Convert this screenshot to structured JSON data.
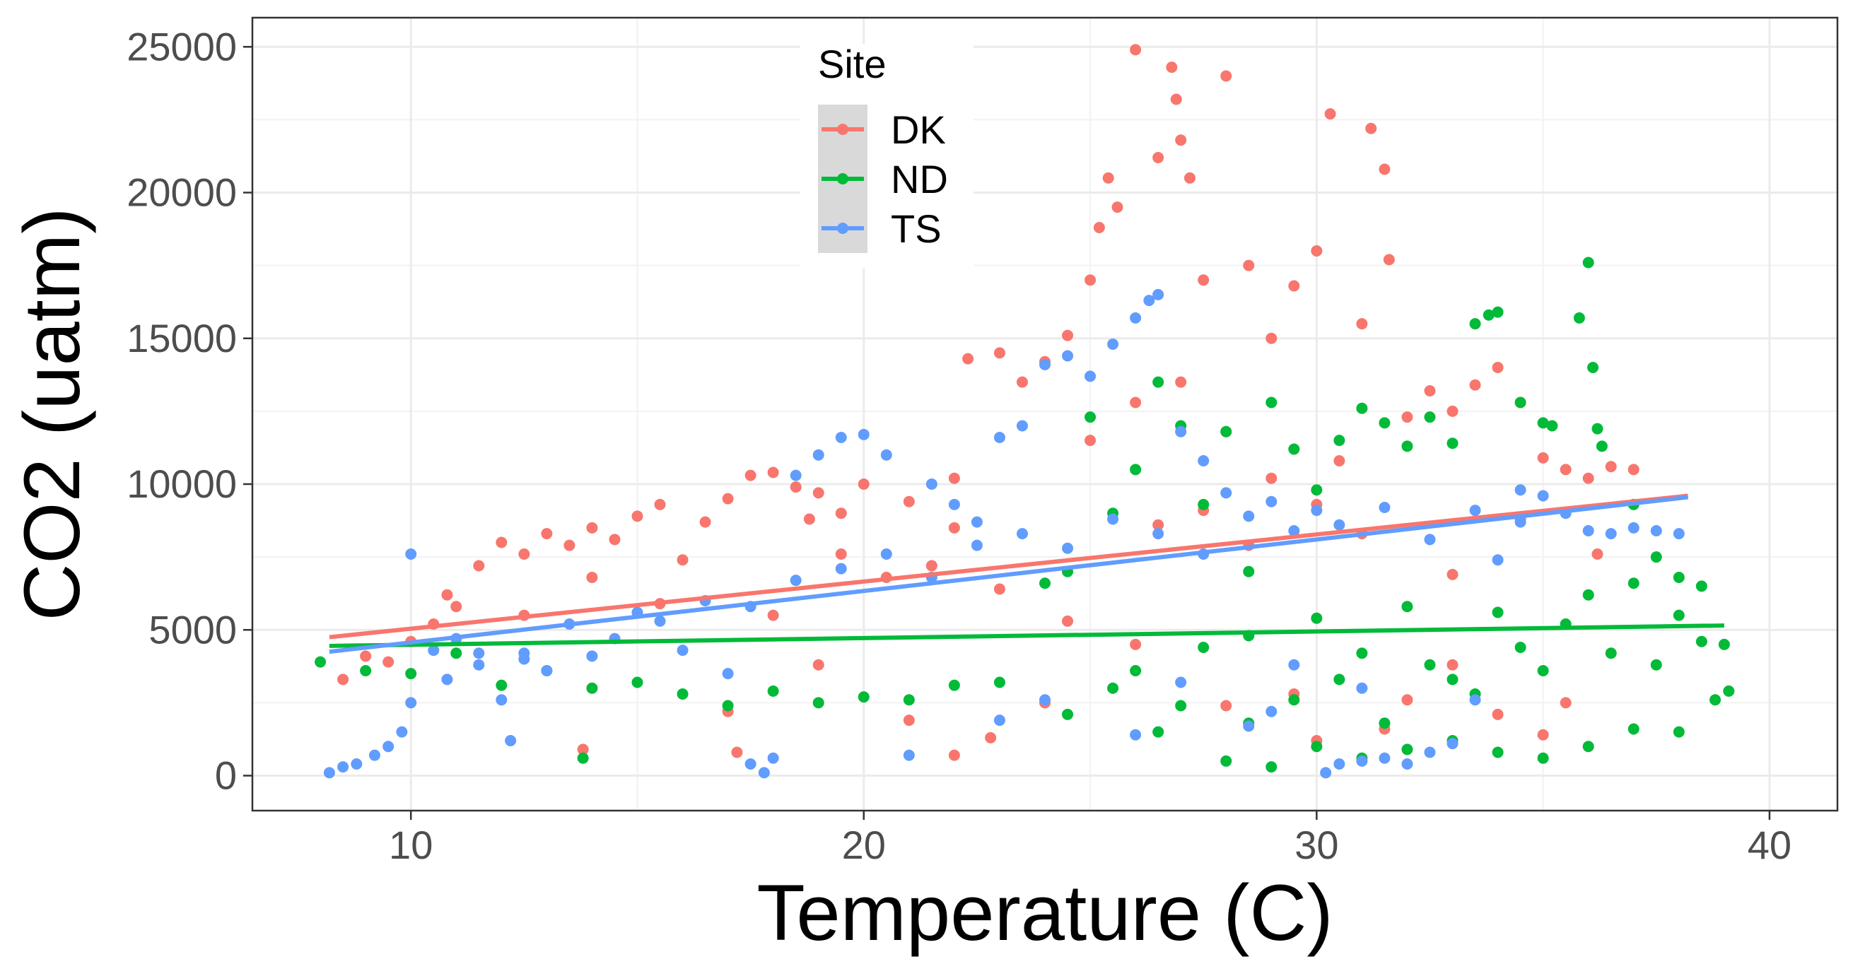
{
  "chart_data": {
    "type": "scatter",
    "title": "",
    "xlabel": "Temperature (C)",
    "ylabel": "CO2 (uatm)",
    "xlim": [
      6.5,
      41.5
    ],
    "ylim": [
      -1200,
      26000
    ],
    "x_ticks": [
      10,
      20,
      30,
      40
    ],
    "x_tick_labels": [
      "10",
      "20",
      "30",
      "40"
    ],
    "y_ticks": [
      0,
      5000,
      10000,
      15000,
      20000,
      25000
    ],
    "y_tick_labels": [
      "0",
      "5000",
      "10000",
      "15000",
      "20000",
      "25000"
    ],
    "grid": true,
    "legend": {
      "title": "Site",
      "placement": "top-left-inside"
    },
    "series": [
      {
        "name": "DK",
        "color": "#F8766D",
        "trend": [
          [
            8.2,
            4750
          ],
          [
            38.2,
            9600
          ]
        ],
        "points": [
          [
            8.5,
            3300
          ],
          [
            9,
            4100
          ],
          [
            9.5,
            3900
          ],
          [
            10,
            4600
          ],
          [
            10.5,
            5200
          ],
          [
            11,
            5800
          ],
          [
            11.5,
            7200
          ],
          [
            12,
            8000
          ],
          [
            12.5,
            7600
          ],
          [
            13,
            8300
          ],
          [
            13.5,
            7900
          ],
          [
            14,
            8500
          ],
          [
            14.5,
            8100
          ],
          [
            15,
            8900
          ],
          [
            15.5,
            9300
          ],
          [
            16,
            7400
          ],
          [
            16.5,
            8700
          ],
          [
            17,
            9500
          ],
          [
            17.5,
            10300
          ],
          [
            18,
            10400
          ],
          [
            18.5,
            9900
          ],
          [
            19,
            9700
          ],
          [
            19.5,
            9000
          ],
          [
            20,
            10000
          ],
          [
            21,
            9400
          ],
          [
            22,
            10200
          ],
          [
            22.3,
            14300
          ],
          [
            23,
            14500
          ],
          [
            23.5,
            13500
          ],
          [
            24,
            14200
          ],
          [
            24.5,
            15100
          ],
          [
            25,
            17000
          ],
          [
            25.2,
            18800
          ],
          [
            25.4,
            20500
          ],
          [
            25.6,
            19500
          ],
          [
            26,
            24900
          ],
          [
            26.5,
            21200
          ],
          [
            26.8,
            24300
          ],
          [
            26.9,
            23200
          ],
          [
            27,
            21800
          ],
          [
            27.2,
            20500
          ],
          [
            27.5,
            17000
          ],
          [
            28,
            24000
          ],
          [
            28.5,
            17500
          ],
          [
            29,
            15000
          ],
          [
            29.5,
            16800
          ],
          [
            30,
            18000
          ],
          [
            30.3,
            22700
          ],
          [
            31,
            15500
          ],
          [
            31.2,
            22200
          ],
          [
            31.5,
            20800
          ],
          [
            31.6,
            17700
          ],
          [
            32,
            12300
          ],
          [
            32.5,
            13200
          ],
          [
            33,
            12500
          ],
          [
            33.5,
            13400
          ],
          [
            34,
            14000
          ],
          [
            34.5,
            12800
          ],
          [
            35,
            10900
          ],
          [
            35.5,
            10500
          ],
          [
            36,
            10200
          ],
          [
            36.5,
            10600
          ],
          [
            37,
            10500
          ],
          [
            17.2,
            800
          ],
          [
            17,
            2200
          ],
          [
            19,
            3800
          ],
          [
            21,
            1900
          ],
          [
            22,
            700
          ],
          [
            22.8,
            1300
          ],
          [
            24,
            2500
          ],
          [
            26,
            4500
          ],
          [
            28,
            2400
          ],
          [
            29.5,
            2800
          ],
          [
            30,
            1200
          ],
          [
            31.5,
            1600
          ],
          [
            32,
            2600
          ],
          [
            33,
            3800
          ],
          [
            34,
            2100
          ],
          [
            35,
            1400
          ],
          [
            35.5,
            2500
          ],
          [
            13.8,
            900
          ],
          [
            18,
            5500
          ],
          [
            20.5,
            6800
          ],
          [
            21.5,
            7200
          ],
          [
            23,
            6400
          ],
          [
            24.5,
            5300
          ],
          [
            26.5,
            8600
          ],
          [
            27.5,
            9100
          ],
          [
            28.5,
            7900
          ],
          [
            30.5,
            10800
          ],
          [
            31,
            8300
          ],
          [
            33,
            6900
          ],
          [
            34.5,
            8800
          ],
          [
            36.2,
            7600
          ],
          [
            10.8,
            6200
          ],
          [
            12.5,
            5500
          ],
          [
            14,
            6800
          ],
          [
            15.5,
            5900
          ],
          [
            18.8,
            8800
          ],
          [
            19.5,
            7600
          ],
          [
            22,
            8500
          ],
          [
            25,
            11500
          ],
          [
            26,
            12800
          ],
          [
            27,
            13500
          ],
          [
            28,
            11800
          ],
          [
            29,
            10200
          ],
          [
            30,
            9300
          ]
        ]
      },
      {
        "name": "ND",
        "color": "#00BA38",
        "trend": [
          [
            8.2,
            4450
          ],
          [
            39,
            5150
          ]
        ],
        "points": [
          [
            8,
            3900
          ],
          [
            9,
            3600
          ],
          [
            10,
            3500
          ],
          [
            11,
            4200
          ],
          [
            12,
            3100
          ],
          [
            13,
            3600
          ],
          [
            13.8,
            600
          ],
          [
            14,
            3000
          ],
          [
            15,
            3200
          ],
          [
            16,
            2800
          ],
          [
            17,
            2400
          ],
          [
            18,
            2900
          ],
          [
            19,
            2500
          ],
          [
            20,
            2700
          ],
          [
            21,
            2600
          ],
          [
            22,
            3100
          ],
          [
            23,
            3200
          ],
          [
            24,
            6600
          ],
          [
            24.5,
            7000
          ],
          [
            25,
            12300
          ],
          [
            25.5,
            9000
          ],
          [
            26,
            10500
          ],
          [
            26.5,
            13500
          ],
          [
            27,
            12000
          ],
          [
            27.5,
            9300
          ],
          [
            28,
            11800
          ],
          [
            28.5,
            7000
          ],
          [
            29,
            12800
          ],
          [
            29.5,
            11200
          ],
          [
            30,
            9800
          ],
          [
            30.5,
            11500
          ],
          [
            31,
            12600
          ],
          [
            31.5,
            12100
          ],
          [
            32,
            11300
          ],
          [
            32.5,
            12300
          ],
          [
            33,
            11400
          ],
          [
            33.5,
            15500
          ],
          [
            33.8,
            15800
          ],
          [
            34,
            15900
          ],
          [
            34.5,
            12800
          ],
          [
            35,
            12100
          ],
          [
            35.2,
            12000
          ],
          [
            35.8,
            15700
          ],
          [
            36,
            17600
          ],
          [
            36.1,
            14000
          ],
          [
            36.2,
            11900
          ],
          [
            36.3,
            11300
          ],
          [
            37,
            9300
          ],
          [
            37.5,
            7500
          ],
          [
            38,
            6800
          ],
          [
            38.5,
            6500
          ],
          [
            39,
            4500
          ],
          [
            39.1,
            2900
          ],
          [
            28,
            500
          ],
          [
            29,
            300
          ],
          [
            30,
            1000
          ],
          [
            31,
            600
          ],
          [
            32,
            900
          ],
          [
            33,
            1200
          ],
          [
            34,
            800
          ],
          [
            35,
            600
          ],
          [
            36,
            1000
          ],
          [
            37,
            1600
          ],
          [
            38,
            1500
          ],
          [
            38.8,
            2600
          ],
          [
            26,
            3600
          ],
          [
            27,
            2400
          ],
          [
            28.5,
            1800
          ],
          [
            29.5,
            2600
          ],
          [
            30.5,
            3300
          ],
          [
            31.5,
            1800
          ],
          [
            32.5,
            3800
          ],
          [
            33.5,
            2800
          ],
          [
            34.5,
            4400
          ],
          [
            35.5,
            5200
          ],
          [
            36.5,
            4200
          ],
          [
            37.5,
            3800
          ],
          [
            38.5,
            4600
          ],
          [
            24.5,
            2100
          ],
          [
            25.5,
            3000
          ],
          [
            26.5,
            1500
          ],
          [
            27.5,
            4400
          ],
          [
            28.5,
            4800
          ],
          [
            30,
            5400
          ],
          [
            31,
            4200
          ],
          [
            32,
            5800
          ],
          [
            33,
            3300
          ],
          [
            34,
            5600
          ],
          [
            35,
            3600
          ],
          [
            36,
            6200
          ],
          [
            37,
            6600
          ],
          [
            38,
            5500
          ]
        ]
      },
      {
        "name": "TS",
        "color": "#619CFF",
        "trend": [
          [
            8.2,
            4250
          ],
          [
            38.2,
            9550
          ]
        ],
        "points": [
          [
            8.2,
            100
          ],
          [
            8.5,
            300
          ],
          [
            8.8,
            400
          ],
          [
            9.2,
            700
          ],
          [
            9.5,
            1000
          ],
          [
            9.8,
            1500
          ],
          [
            10,
            2500
          ],
          [
            10,
            7600
          ],
          [
            10.5,
            4300
          ],
          [
            11,
            4700
          ],
          [
            11.5,
            3800
          ],
          [
            12,
            2600
          ],
          [
            12.2,
            1200
          ],
          [
            12.5,
            4200
          ],
          [
            13,
            3600
          ],
          [
            14,
            4100
          ],
          [
            15,
            5600
          ],
          [
            16,
            4300
          ],
          [
            17,
            3500
          ],
          [
            17.5,
            400
          ],
          [
            17.8,
            100
          ],
          [
            18,
            600
          ],
          [
            18.5,
            10300
          ],
          [
            19,
            11000
          ],
          [
            19.5,
            11600
          ],
          [
            20,
            11700
          ],
          [
            20.5,
            11000
          ],
          [
            21,
            700
          ],
          [
            21.5,
            10000
          ],
          [
            22,
            9300
          ],
          [
            22.5,
            8700
          ],
          [
            23,
            11600
          ],
          [
            23.5,
            12000
          ],
          [
            24,
            14100
          ],
          [
            24.5,
            14400
          ],
          [
            25,
            13700
          ],
          [
            25.5,
            14800
          ],
          [
            26,
            15700
          ],
          [
            26.3,
            16300
          ],
          [
            26.5,
            16500
          ],
          [
            27,
            11800
          ],
          [
            27.5,
            10800
          ],
          [
            28,
            9700
          ],
          [
            28.5,
            1700
          ],
          [
            29,
            9400
          ],
          [
            29.5,
            3800
          ],
          [
            30,
            9100
          ],
          [
            30.2,
            100
          ],
          [
            30.5,
            400
          ],
          [
            31,
            500
          ],
          [
            31.5,
            600
          ],
          [
            32,
            400
          ],
          [
            32.5,
            800
          ],
          [
            33,
            1100
          ],
          [
            33.5,
            2600
          ],
          [
            34,
            7400
          ],
          [
            34.5,
            9800
          ],
          [
            35,
            9600
          ],
          [
            35.5,
            9000
          ],
          [
            36,
            8400
          ],
          [
            36.5,
            8300
          ],
          [
            37,
            8500
          ],
          [
            37.5,
            8400
          ],
          [
            38,
            8300
          ],
          [
            10.8,
            3300
          ],
          [
            11.5,
            4200
          ],
          [
            12.5,
            4000
          ],
          [
            13.5,
            5200
          ],
          [
            14.5,
            4700
          ],
          [
            15.5,
            5300
          ],
          [
            16.5,
            6000
          ],
          [
            17.5,
            5800
          ],
          [
            18.5,
            6700
          ],
          [
            19.5,
            7100
          ],
          [
            20.5,
            7600
          ],
          [
            21.5,
            6800
          ],
          [
            22.5,
            7900
          ],
          [
            23.5,
            8300
          ],
          [
            24.5,
            7800
          ],
          [
            25.5,
            8800
          ],
          [
            26.5,
            8300
          ],
          [
            27.5,
            7600
          ],
          [
            28.5,
            8900
          ],
          [
            29.5,
            8400
          ],
          [
            30.5,
            8600
          ],
          [
            31.5,
            9200
          ],
          [
            32.5,
            8100
          ],
          [
            33.5,
            9100
          ],
          [
            34.5,
            8700
          ],
          [
            23,
            1900
          ],
          [
            24,
            2600
          ],
          [
            26,
            1400
          ],
          [
            27,
            3200
          ],
          [
            29,
            2200
          ],
          [
            31,
            3000
          ]
        ]
      }
    ]
  }
}
